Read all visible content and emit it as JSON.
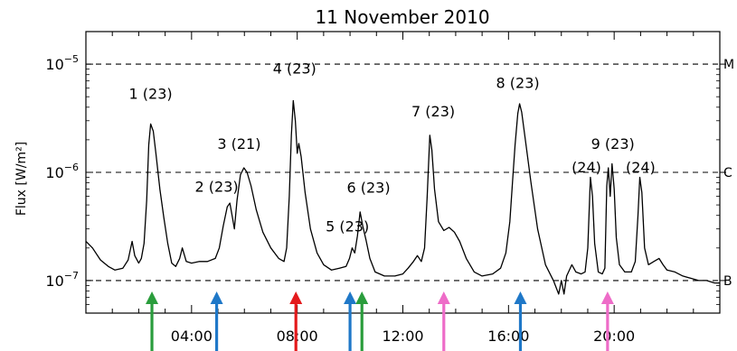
{
  "chart_data": {
    "type": "line",
    "title": "11 November 2010",
    "ylabel": "Flux [W/m²]",
    "xlabel": "",
    "y_scale": "log",
    "ylim": [
      5e-08,
      2e-05
    ],
    "xlim_hours": [
      0,
      24
    ],
    "y_ticks": [
      {
        "value": 1e-05,
        "label_base": "10",
        "label_exp": "−5"
      },
      {
        "value": 1e-06,
        "label_base": "10",
        "label_exp": "−6"
      },
      {
        "value": 1e-07,
        "label_base": "10",
        "label_exp": "−7"
      }
    ],
    "x_ticks": [
      {
        "hour": 4,
        "label": "04:00"
      },
      {
        "hour": 8,
        "label": "08:00"
      },
      {
        "hour": 12,
        "label": "12:00"
      },
      {
        "hour": 16,
        "label": "16:00"
      },
      {
        "hour": 20,
        "label": "20:00"
      }
    ],
    "class_levels": [
      {
        "value": 1e-05,
        "label": "M"
      },
      {
        "value": 1e-06,
        "label": "C"
      },
      {
        "value": 1e-07,
        "label": "B"
      }
    ],
    "series": [
      {
        "color": "#000000",
        "points": [
          [
            0.0,
            2.3e-07
          ],
          [
            0.25,
            2e-07
          ],
          [
            0.55,
            1.55e-07
          ],
          [
            0.85,
            1.35e-07
          ],
          [
            1.1,
            1.25e-07
          ],
          [
            1.4,
            1.3e-07
          ],
          [
            1.6,
            1.55e-07
          ],
          [
            1.75,
            2.3e-07
          ],
          [
            1.85,
            1.7e-07
          ],
          [
            2.0,
            1.45e-07
          ],
          [
            2.1,
            1.6e-07
          ],
          [
            2.2,
            2.2e-07
          ],
          [
            2.3,
            5.5e-07
          ],
          [
            2.38,
            1.8e-06
          ],
          [
            2.45,
            2.8e-06
          ],
          [
            2.55,
            2.4e-06
          ],
          [
            2.65,
            1.5e-06
          ],
          [
            2.8,
            7e-07
          ],
          [
            2.95,
            3.8e-07
          ],
          [
            3.1,
            2.2e-07
          ],
          [
            3.25,
            1.45e-07
          ],
          [
            3.4,
            1.35e-07
          ],
          [
            3.55,
            1.6e-07
          ],
          [
            3.65,
            2e-07
          ],
          [
            3.8,
            1.5e-07
          ],
          [
            4.0,
            1.45e-07
          ],
          [
            4.3,
            1.5e-07
          ],
          [
            4.6,
            1.5e-07
          ],
          [
            4.9,
            1.6e-07
          ],
          [
            5.05,
            2e-07
          ],
          [
            5.2,
            3.2e-07
          ],
          [
            5.35,
            4.8e-07
          ],
          [
            5.45,
            5.2e-07
          ],
          [
            5.55,
            3.8e-07
          ],
          [
            5.62,
            3e-07
          ],
          [
            5.72,
            5.5e-07
          ],
          [
            5.85,
            9.5e-07
          ],
          [
            5.98,
            1.1e-06
          ],
          [
            6.1,
            1e-06
          ],
          [
            6.25,
            7.5e-07
          ],
          [
            6.45,
            4.5e-07
          ],
          [
            6.7,
            2.8e-07
          ],
          [
            7.0,
            2e-07
          ],
          [
            7.3,
            1.6e-07
          ],
          [
            7.5,
            1.5e-07
          ],
          [
            7.6,
            2e-07
          ],
          [
            7.7,
            6e-07
          ],
          [
            7.78,
            2.2e-06
          ],
          [
            7.85,
            4.6e-06
          ],
          [
            7.93,
            3e-06
          ],
          [
            8.0,
            1.5e-06
          ],
          [
            8.06,
            1.85e-06
          ],
          [
            8.15,
            1.4e-06
          ],
          [
            8.3,
            6.5e-07
          ],
          [
            8.5,
            3e-07
          ],
          [
            8.75,
            1.8e-07
          ],
          [
            9.0,
            1.4e-07
          ],
          [
            9.3,
            1.25e-07
          ],
          [
            9.6,
            1.3e-07
          ],
          [
            9.85,
            1.35e-07
          ],
          [
            9.98,
            1.6e-07
          ],
          [
            10.08,
            2e-07
          ],
          [
            10.18,
            1.8e-07
          ],
          [
            10.28,
            2.6e-07
          ],
          [
            10.38,
            4.3e-07
          ],
          [
            10.48,
            3.2e-07
          ],
          [
            10.6,
            2.4e-07
          ],
          [
            10.75,
            1.6e-07
          ],
          [
            10.95,
            1.2e-07
          ],
          [
            11.3,
            1.1e-07
          ],
          [
            11.7,
            1.1e-07
          ],
          [
            12.0,
            1.15e-07
          ],
          [
            12.2,
            1.3e-07
          ],
          [
            12.4,
            1.5e-07
          ],
          [
            12.55,
            1.7e-07
          ],
          [
            12.7,
            1.5e-07
          ],
          [
            12.82,
            2e-07
          ],
          [
            12.92,
            6e-07
          ],
          [
            13.02,
            2.2e-06
          ],
          [
            13.1,
            1.6e-06
          ],
          [
            13.2,
            7e-07
          ],
          [
            13.35,
            3.5e-07
          ],
          [
            13.55,
            2.9e-07
          ],
          [
            13.75,
            3.1e-07
          ],
          [
            13.95,
            2.8e-07
          ],
          [
            14.15,
            2.3e-07
          ],
          [
            14.4,
            1.6e-07
          ],
          [
            14.7,
            1.2e-07
          ],
          [
            15.0,
            1.1e-07
          ],
          [
            15.4,
            1.15e-07
          ],
          [
            15.7,
            1.3e-07
          ],
          [
            15.9,
            1.8e-07
          ],
          [
            16.05,
            3.5e-07
          ],
          [
            16.15,
            8e-07
          ],
          [
            16.25,
            1.8e-06
          ],
          [
            16.35,
            3.5e-06
          ],
          [
            16.42,
            4.3e-06
          ],
          [
            16.5,
            3.6e-06
          ],
          [
            16.65,
            1.9e-06
          ],
          [
            16.85,
            8e-07
          ],
          [
            17.1,
            3e-07
          ],
          [
            17.4,
            1.4e-07
          ],
          [
            17.7,
            1e-07
          ],
          [
            17.9,
            7.5e-08
          ],
          [
            18.0,
            1e-07
          ],
          [
            18.1,
            7.5e-08
          ],
          [
            18.2,
            1.1e-07
          ],
          [
            18.4,
            1.4e-07
          ],
          [
            18.55,
            1.2e-07
          ],
          [
            18.75,
            1.15e-07
          ],
          [
            18.9,
            1.2e-07
          ],
          [
            19.0,
            2e-07
          ],
          [
            19.1,
            9e-07
          ],
          [
            19.18,
            6e-07
          ],
          [
            19.26,
            2.2e-07
          ],
          [
            19.4,
            1.2e-07
          ],
          [
            19.55,
            1.15e-07
          ],
          [
            19.65,
            1.3e-07
          ],
          [
            19.72,
            7.5e-07
          ],
          [
            19.78,
            1.1e-06
          ],
          [
            19.85,
            6e-07
          ],
          [
            19.92,
            1.2e-06
          ],
          [
            20.0,
            7e-07
          ],
          [
            20.08,
            2.5e-07
          ],
          [
            20.2,
            1.4e-07
          ],
          [
            20.4,
            1.2e-07
          ],
          [
            20.65,
            1.2e-07
          ],
          [
            20.8,
            1.5e-07
          ],
          [
            20.9,
            4e-07
          ],
          [
            20.97,
            9e-07
          ],
          [
            21.05,
            6.5e-07
          ],
          [
            21.15,
            2e-07
          ],
          [
            21.3,
            1.4e-07
          ],
          [
            21.5,
            1.5e-07
          ],
          [
            21.7,
            1.6e-07
          ],
          [
            21.85,
            1.4e-07
          ],
          [
            22.0,
            1.25e-07
          ],
          [
            22.3,
            1.2e-07
          ],
          [
            22.6,
            1.1e-07
          ],
          [
            22.9,
            1.05e-07
          ],
          [
            23.2,
            1e-07
          ],
          [
            23.5,
            1e-07
          ],
          [
            23.8,
            9.5e-08
          ],
          [
            24.0,
            9.5e-08
          ]
        ]
      }
    ],
    "annotations": [
      {
        "text": "1 (23)",
        "hour": 2.45,
        "flux": 4.8e-06
      },
      {
        "text": "2 (23)",
        "hour": 4.95,
        "flux": 6.6e-07
      },
      {
        "text": "3 (21)",
        "hour": 5.8,
        "flux": 1.65e-06
      },
      {
        "text": "4 (23)",
        "hour": 7.9,
        "flux": 8.2e-06
      },
      {
        "text": "5 (23)",
        "hour": 9.9,
        "flux": 2.85e-07
      },
      {
        "text": "6 (23)",
        "hour": 10.7,
        "flux": 6.5e-07
      },
      {
        "text": "7 (23)",
        "hour": 13.15,
        "flux": 3.3e-06
      },
      {
        "text": "8 (23)",
        "hour": 16.35,
        "flux": 6e-06
      },
      {
        "text": "(24)",
        "hour": 18.95,
        "flux": 1e-06
      },
      {
        "text": "9 (23)",
        "hour": 19.95,
        "flux": 1.65e-06
      },
      {
        "text": "(24)",
        "hour": 21.0,
        "flux": 1e-06
      }
    ],
    "arrows": [
      {
        "hour": 2.5,
        "color": "#2a9d3c"
      },
      {
        "hour": 4.95,
        "color": "#1f78c8"
      },
      {
        "hour": 7.95,
        "color": "#e41a1c"
      },
      {
        "hour": 10.0,
        "color": "#1f78c8"
      },
      {
        "hour": 10.45,
        "color": "#2a9d3c"
      },
      {
        "hour": 13.55,
        "color": "#ee6cc8"
      },
      {
        "hour": 16.45,
        "color": "#1f78c8"
      },
      {
        "hour": 19.75,
        "color": "#ee6cc8"
      }
    ]
  }
}
